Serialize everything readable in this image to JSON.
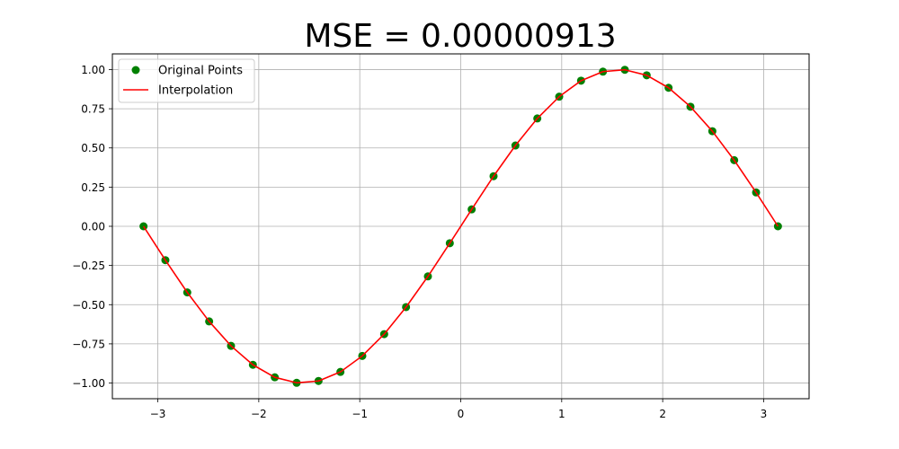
{
  "chart_data": {
    "type": "scatter",
    "title": "MSE = 0.00000913",
    "xlabel": "",
    "ylabel": "",
    "xlim": [
      -3.45,
      3.45
    ],
    "ylim": [
      -1.1,
      1.1
    ],
    "grid": true,
    "legend_position": "top-left",
    "x_ticks": [
      -3,
      -2,
      -1,
      0,
      1,
      2,
      3
    ],
    "x_tick_labels": [
      "−3",
      "−2",
      "−1",
      "0",
      "1",
      "2",
      "3"
    ],
    "y_ticks": [
      -1.0,
      -0.75,
      -0.5,
      -0.25,
      0.0,
      0.25,
      0.5,
      0.75,
      1.0
    ],
    "y_tick_labels": [
      "−1.00",
      "−0.75",
      "−0.50",
      "−0.25",
      "0.00",
      "0.25",
      "0.50",
      "0.75",
      "1.00"
    ],
    "series": [
      {
        "name": "Original Points",
        "kind": "scatter",
        "color": "#008000",
        "x": [
          -3.1416,
          -2.925,
          -2.7083,
          -2.4916,
          -2.275,
          -2.0583,
          -1.8416,
          -1.625,
          -1.4083,
          -1.1916,
          -0.975,
          -0.7583,
          -0.5416,
          -0.325,
          -0.1083,
          0.1083,
          0.325,
          0.5416,
          0.7583,
          0.975,
          1.1916,
          1.4083,
          1.625,
          1.8416,
          2.0583,
          2.275,
          2.4916,
          2.7083,
          2.925,
          3.1416
        ],
        "y": [
          0.0,
          -0.216,
          -0.4218,
          -0.6069,
          -0.763,
          -0.8837,
          -0.9635,
          -0.9985,
          -0.9868,
          -0.9289,
          -0.8271,
          -0.6879,
          -0.5155,
          -0.3195,
          -0.1081,
          0.1081,
          0.3195,
          0.5155,
          0.6879,
          0.8271,
          0.9289,
          0.9868,
          0.9985,
          0.9635,
          0.8837,
          0.763,
          0.6069,
          0.4218,
          0.216,
          0.0
        ]
      },
      {
        "name": "Interpolation",
        "kind": "line",
        "color": "#ff0000",
        "x": [
          -3.1416,
          -2.925,
          -2.7083,
          -2.4916,
          -2.275,
          -2.0583,
          -1.8416,
          -1.625,
          -1.4083,
          -1.1916,
          -0.975,
          -0.7583,
          -0.5416,
          -0.325,
          -0.1083,
          0.1083,
          0.325,
          0.5416,
          0.7583,
          0.975,
          1.1916,
          1.4083,
          1.625,
          1.8416,
          2.0583,
          2.275,
          2.4916,
          2.7083,
          2.925,
          3.1416
        ],
        "y": [
          0.0,
          -0.216,
          -0.4218,
          -0.6069,
          -0.763,
          -0.8837,
          -0.9635,
          -0.9985,
          -0.9868,
          -0.9289,
          -0.8271,
          -0.6879,
          -0.5155,
          -0.3195,
          -0.1081,
          0.1081,
          0.3195,
          0.5155,
          0.6879,
          0.8271,
          0.9289,
          0.9868,
          0.9985,
          0.9635,
          0.8837,
          0.763,
          0.6069,
          0.4218,
          0.216,
          0.0
        ]
      }
    ]
  }
}
